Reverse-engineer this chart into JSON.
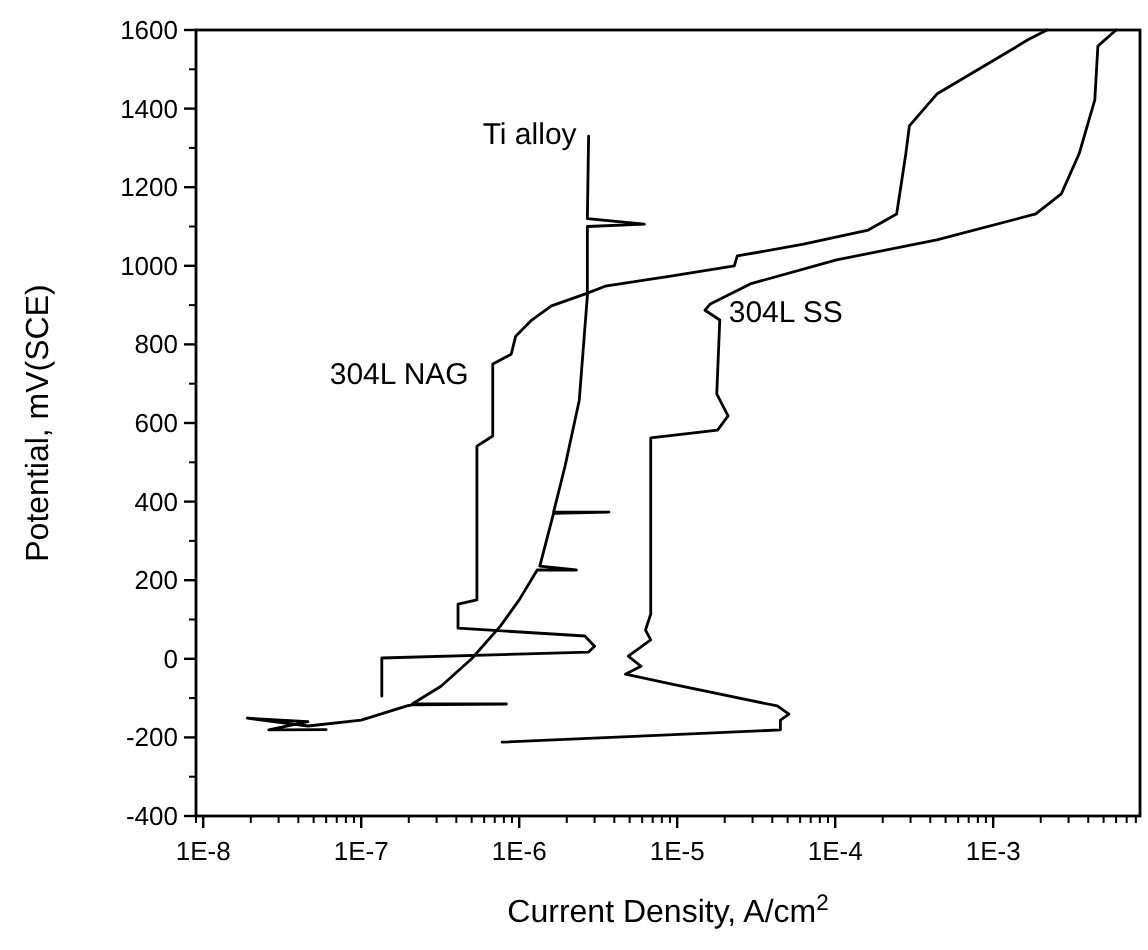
{
  "chart_data": {
    "type": "line",
    "xlabel": "Current Density, A/cm$^{2}$",
    "ylabel": "Potential, mV(SCE)",
    "log": "x",
    "grid": false,
    "marker": "none",
    "line_style": "solid",
    "xlim": [
      9e-09,
      0.0085
    ],
    "ylim": [
      -400,
      1600
    ],
    "xticks": [
      {
        "value": 1e-08,
        "label": "1E-8"
      },
      {
        "value": 1e-07,
        "label": "1E-7"
      },
      {
        "value": 1e-06,
        "label": "1E-6"
      },
      {
        "value": 1e-05,
        "label": "1E-5"
      },
      {
        "value": 0.0001,
        "label": "1E-4"
      },
      {
        "value": 0.001,
        "label": "1E-3"
      }
    ],
    "yticks": [
      -400,
      -200,
      0,
      200,
      400,
      600,
      800,
      1000,
      1200,
      1400,
      1600
    ],
    "series": [
      {
        "name": "Ti alloy",
        "color": "#000000",
        "x": [
          2.75e-06,
          2.7e-06,
          6.2e-06,
          2.7e-06,
          2.7e-06,
          2.4e-06,
          1.95e-06,
          1.65e-06,
          3.7e-06,
          1.65e-06,
          1.35e-06,
          2.3e-06,
          1.3e-06,
          1e-06,
          7.6e-07,
          5e-07,
          3.2e-07,
          2.1e-07,
          8.3e-07,
          2.1e-07,
          1.95e-07,
          1e-07,
          4.6e-08,
          1.9e-08,
          4.6e-08,
          2.6e-08,
          6e-08
        ],
        "values": [
          1330,
          1120,
          1106,
          1100,
          923,
          658,
          490,
          373,
          373,
          370,
          236,
          226,
          226,
          150,
          83,
          0,
          -70,
          -115,
          -115,
          -117,
          -120,
          -156,
          -171,
          -151,
          -160,
          -181,
          -180
        ]
      },
      {
        "name": "304L NAG",
        "color": "#000000",
        "x": [
          0.00219,
          0.00166,
          0.00112,
          0.00044,
          0.000295,
          0.00028,
          0.000245,
          0.000162,
          6.3e-05,
          2.4e-05,
          2.3e-05,
          9.1e-06,
          3.5e-06,
          2.6e-06,
          1.6e-06,
          1.2e-06,
          9.5e-07,
          8.9e-07,
          6.8e-07,
          6.8e-07,
          5.4e-07,
          5.4e-07,
          4.1e-07,
          4.1e-07,
          2.6e-06,
          3e-06,
          2.75e-06,
          1.35e-07,
          1.35e-07
        ],
        "values": [
          1600,
          1575,
          1534,
          1437,
          1356,
          1285,
          1132,
          1091,
          1055,
          1025,
          1000,
          974,
          948,
          928,
          898,
          862,
          821,
          775,
          750,
          567,
          541,
          150,
          139,
          78,
          58,
          32,
          17,
          2,
          -95
        ]
      },
      {
        "name": "304L SS",
        "color": "#000000",
        "x": [
          0.006,
          0.0046,
          0.0044,
          0.0035,
          0.0027,
          0.00186,
          0.00044,
          0.000102,
          2.9e-05,
          1.62e-05,
          1.5e-05,
          1.86e-05,
          1.78e-05,
          1.95e-05,
          2.1e-05,
          1.8e-05,
          6.8e-06,
          6.8e-06,
          6.3e-06,
          6.8e-06,
          4.9e-06,
          5.9e-06,
          4.7e-06,
          9.1e-06,
          4.3e-05,
          5.1e-05,
          4.5e-05,
          4.5e-05,
          5.8e-06,
          7.8e-07
        ],
        "values": [
          1600,
          1559,
          1422,
          1285,
          1183,
          1132,
          1066,
          1015,
          954,
          903,
          887,
          862,
          674,
          643,
          618,
          582,
          562,
          114,
          73,
          48,
          7,
          -19,
          -39,
          -64,
          -120,
          -141,
          -156,
          -181,
          -197,
          -212
        ]
      }
    ]
  }
}
